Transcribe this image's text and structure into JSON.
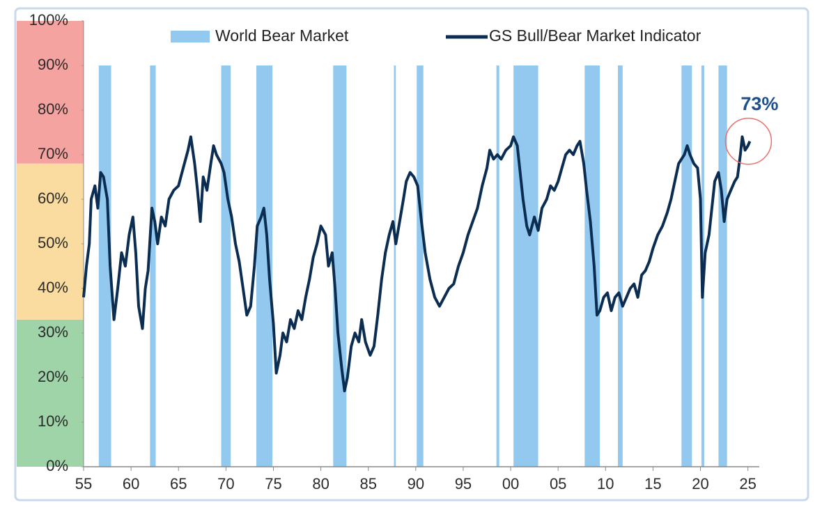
{
  "chart_data": {
    "type": "line",
    "ylim": [
      0,
      100
    ],
    "yticks": [
      {
        "value": 0,
        "label": "0%"
      },
      {
        "value": 10,
        "label": "10%"
      },
      {
        "value": 20,
        "label": "20%"
      },
      {
        "value": 30,
        "label": "30%"
      },
      {
        "value": 40,
        "label": "40%"
      },
      {
        "value": 50,
        "label": "50%"
      },
      {
        "value": 60,
        "label": "60%"
      },
      {
        "value": 70,
        "label": "70%"
      },
      {
        "value": 80,
        "label": "80%"
      },
      {
        "value": 90,
        "label": "90%"
      },
      {
        "value": 100,
        "label": "100%"
      }
    ],
    "xlim": [
      1955,
      2026.2
    ],
    "xticks": [
      {
        "value": 1955,
        "label": "55"
      },
      {
        "value": 1960,
        "label": "60"
      },
      {
        "value": 1965,
        "label": "65"
      },
      {
        "value": 1970,
        "label": "70"
      },
      {
        "value": 1975,
        "label": "75"
      },
      {
        "value": 1980,
        "label": "80"
      },
      {
        "value": 1985,
        "label": "85"
      },
      {
        "value": 1990,
        "label": "90"
      },
      {
        "value": 1995,
        "label": "95"
      },
      {
        "value": 2000,
        "label": "00"
      },
      {
        "value": 2005,
        "label": "05"
      },
      {
        "value": 2010,
        "label": "10"
      },
      {
        "value": 2015,
        "label": "15"
      },
      {
        "value": 2020,
        "label": "20"
      },
      {
        "value": 2025,
        "label": "25"
      }
    ],
    "zones": [
      {
        "from": 0,
        "to": 33,
        "color": "#9fd4a9"
      },
      {
        "from": 33,
        "to": 68,
        "color": "#fbdca0"
      },
      {
        "from": 68,
        "to": 100,
        "color": "#f5a3a0"
      }
    ],
    "bear_markets": {
      "name": "World Bear Market",
      "color": "#94c9ef",
      "band_ylim": [
        0,
        90
      ],
      "periods": [
        [
          1956.6,
          1957.9
        ],
        [
          1962.0,
          1962.6
        ],
        [
          1969.5,
          1970.5
        ],
        [
          1973.2,
          1974.9
        ],
        [
          1981.3,
          1982.7
        ],
        [
          1987.7,
          1987.9
        ],
        [
          1990.1,
          1990.8
        ],
        [
          1998.5,
          1998.8
        ],
        [
          2000.3,
          2002.9
        ],
        [
          2007.8,
          2009.4
        ],
        [
          2011.3,
          2011.8
        ],
        [
          2018.0,
          2019.1
        ],
        [
          2020.1,
          2020.4
        ],
        [
          2021.9,
          2022.8
        ]
      ]
    },
    "x": [
      1955.0,
      1955.3,
      1955.6,
      1955.8,
      1956.2,
      1956.5,
      1956.8,
      1957.1,
      1957.5,
      1957.8,
      1958.2,
      1958.6,
      1959.0,
      1959.4,
      1959.8,
      1960.2,
      1960.5,
      1960.8,
      1961.2,
      1961.5,
      1961.8,
      1962.2,
      1962.5,
      1962.8,
      1963.2,
      1963.6,
      1964.0,
      1964.5,
      1965.0,
      1965.5,
      1966.0,
      1966.3,
      1966.7,
      1967.0,
      1967.3,
      1967.6,
      1968.0,
      1968.4,
      1968.7,
      1969.0,
      1969.5,
      1969.8,
      1970.2,
      1970.6,
      1971.0,
      1971.4,
      1971.8,
      1972.2,
      1972.6,
      1973.0,
      1973.3,
      1973.7,
      1974.0,
      1974.3,
      1974.6,
      1975.0,
      1975.3,
      1975.7,
      1976.0,
      1976.4,
      1976.8,
      1977.2,
      1977.6,
      1978.0,
      1978.4,
      1978.8,
      1979.2,
      1979.6,
      1980.0,
      1980.5,
      1980.8,
      1981.2,
      1981.5,
      1981.8,
      1982.2,
      1982.5,
      1982.8,
      1983.2,
      1983.6,
      1984.0,
      1984.3,
      1984.7,
      1985.2,
      1985.6,
      1986.0,
      1986.4,
      1986.8,
      1987.2,
      1987.6,
      1987.9,
      1988.3,
      1988.7,
      1989.0,
      1989.4,
      1989.8,
      1990.2,
      1990.6,
      1991.0,
      1991.5,
      1992.0,
      1992.5,
      1993.0,
      1993.5,
      1994.0,
      1994.5,
      1995.0,
      1995.5,
      1996.0,
      1996.5,
      1997.0,
      1997.5,
      1997.8,
      1998.2,
      1998.6,
      1999.0,
      1999.5,
      2000.0,
      2000.3,
      2000.7,
      2001.0,
      2001.3,
      2001.7,
      2002.0,
      2002.5,
      2002.9,
      2003.3,
      2003.8,
      2004.2,
      2004.6,
      2005.0,
      2005.4,
      2005.8,
      2006.2,
      2006.6,
      2007.0,
      2007.3,
      2007.7,
      2008.0,
      2008.4,
      2008.8,
      2009.1,
      2009.4,
      2009.8,
      2010.2,
      2010.6,
      2011.0,
      2011.4,
      2011.8,
      2012.2,
      2012.6,
      2013.0,
      2013.4,
      2013.8,
      2014.2,
      2014.6,
      2015.0,
      2015.5,
      2016.0,
      2016.5,
      2016.9,
      2017.3,
      2017.7,
      2018.0,
      2018.3,
      2018.6,
      2018.9,
      2019.3,
      2019.7,
      2020.0,
      2020.2,
      2020.5,
      2020.9,
      2021.2,
      2021.5,
      2021.9,
      2022.2,
      2022.5,
      2022.8,
      2023.2,
      2023.6,
      2023.9,
      2024.2,
      2024.4,
      2024.7,
      2025.0,
      2025.2
    ],
    "series": [
      {
        "name": "GS Bull/Bear Market Indicator",
        "color": "#0b2d52",
        "values": [
          38,
          45,
          50,
          60,
          63,
          58,
          66,
          65,
          60,
          45,
          33,
          40,
          48,
          45,
          52,
          56,
          48,
          36,
          31,
          40,
          44,
          58,
          55,
          50,
          56,
          54,
          60,
          62,
          63,
          67,
          71,
          74,
          68,
          62,
          55,
          65,
          62,
          68,
          72,
          70,
          68,
          66,
          60,
          56,
          50,
          46,
          40,
          34,
          36,
          45,
          54,
          56,
          58,
          52,
          42,
          32,
          21,
          25,
          30,
          28,
          33,
          31,
          35,
          33,
          38,
          42,
          47,
          50,
          54,
          52,
          45,
          48,
          40,
          30,
          22,
          17,
          20,
          27,
          30,
          28,
          33,
          28,
          25,
          27,
          34,
          42,
          48,
          52,
          55,
          50,
          55,
          60,
          64,
          66,
          65,
          63,
          55,
          48,
          42,
          38,
          36,
          38,
          40,
          41,
          45,
          48,
          52,
          55,
          58,
          63,
          67,
          71,
          69,
          70,
          69,
          71,
          72,
          74,
          72,
          66,
          60,
          54,
          52,
          56,
          53,
          58,
          60,
          63,
          62,
          64,
          67,
          70,
          71,
          70,
          72,
          73,
          68,
          62,
          55,
          45,
          34,
          35,
          38,
          39,
          35,
          38,
          39,
          36,
          38,
          40,
          41,
          38,
          43,
          44,
          46,
          49,
          52,
          54,
          57,
          60,
          64,
          68,
          69,
          70,
          72,
          70,
          68,
          67,
          60,
          38,
          48,
          52,
          58,
          64,
          66,
          62,
          55,
          60,
          62,
          64,
          65,
          70,
          74,
          71,
          72,
          73
        ]
      }
    ],
    "annotation": "73%"
  }
}
